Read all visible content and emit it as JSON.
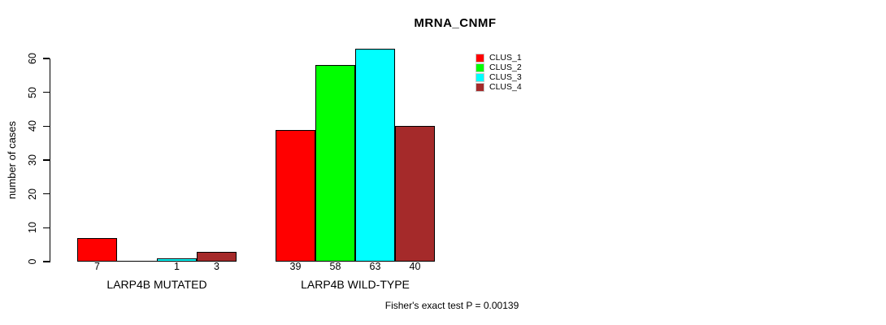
{
  "chart_data": {
    "type": "bar",
    "title": "MRNA_CNMF",
    "ylabel": "number of cases",
    "ylim": [
      0,
      60
    ],
    "yticks": [
      0,
      10,
      20,
      30,
      40,
      50,
      60
    ],
    "categories": [
      "LARP4B MUTATED",
      "LARP4B WILD-TYPE"
    ],
    "series": [
      {
        "name": "CLUS_1",
        "color": "#FF0000",
        "values": [
          7,
          39
        ]
      },
      {
        "name": "CLUS_2",
        "color": "#00FF00",
        "values": [
          0,
          58
        ]
      },
      {
        "name": "CLUS_3",
        "color": "#00FFFF",
        "values": [
          1,
          63
        ]
      },
      {
        "name": "CLUS_4",
        "color": "#A52A2A",
        "values": [
          3,
          40
        ]
      }
    ],
    "bar_value_labels": [
      [
        "7",
        "",
        "1",
        "3"
      ],
      [
        "39",
        "58",
        "63",
        "40"
      ]
    ],
    "legend": {
      "position": "top-right",
      "entries": [
        "CLUS_1",
        "CLUS_2",
        "CLUS_3",
        "CLUS_4"
      ]
    },
    "annotation": "Fisher's exact test P = 0.00139",
    "grid": false,
    "axis_color": "#000000"
  }
}
